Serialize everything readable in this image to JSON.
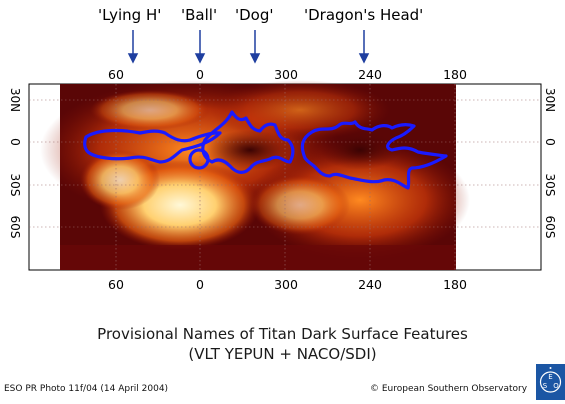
{
  "features": [
    {
      "id": "lying-h",
      "label": "'Lying H'"
    },
    {
      "id": "ball",
      "label": "'Ball'"
    },
    {
      "id": "dog",
      "label": "'Dog'"
    },
    {
      "id": "dragons-head",
      "label": "'Dragon's Head'"
    }
  ],
  "longitude_ticks": [
    "60",
    "0",
    "300",
    "240",
    "180"
  ],
  "latitude_ticks": [
    "30N",
    "0",
    "30S",
    "60S"
  ],
  "caption": {
    "line1": "Provisional Names of Titan Dark Surface Features",
    "line2": "(VLT YEPUN + NACO/SDI)"
  },
  "credits": {
    "photo": "ESO PR Photo 11f/04 (14 April 2004)",
    "copyright": "© European Southern Observatory"
  },
  "logo": {
    "text": "ESO"
  },
  "colors": {
    "outline": "#1a1aff",
    "arrow": "#1f3fa0",
    "map_dark": "#5a0606",
    "map_bright": "#fff4c8"
  }
}
